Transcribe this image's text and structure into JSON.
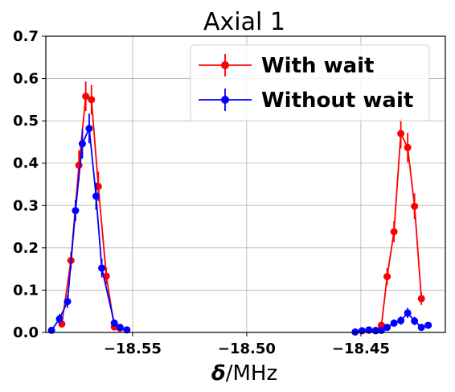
{
  "chart_data": {
    "type": "line",
    "title": "Axial 1",
    "xlabel_symbol": "δ",
    "xlabel_unit": "/MHz",
    "xlim": [
      -18.588,
      -18.413
    ],
    "ylim": [
      0,
      0.7
    ],
    "x_ticks": [
      -18.55,
      -18.5,
      -18.45
    ],
    "x_tick_labels": [
      "−18.55",
      "−18.50",
      "−18.45"
    ],
    "y_ticks": [
      0,
      0.1,
      0.2,
      0.3,
      0.4,
      0.5,
      0.6,
      0.7
    ],
    "y_tick_labels": [
      "0.0",
      "0.1",
      "0.2",
      "0.3",
      "0.4",
      "0.5",
      "0.6",
      "0.7"
    ],
    "grid": true,
    "legend_position": "top-right",
    "series": [
      {
        "name": "With wait",
        "color": "#ff0000",
        "segments": [
          {
            "x": [
              -18.581,
              -18.577,
              -18.5735,
              -18.5705,
              -18.568,
              -18.565,
              -18.5615,
              -18.558,
              -18.5555
            ],
            "y": [
              0.02,
              0.17,
              0.395,
              0.558,
              0.55,
              0.345,
              0.133,
              0.013,
              0.01
            ],
            "err": [
              0.008,
              0.02,
              0.035,
              0.035,
              0.035,
              0.035,
              0.02,
              0.006,
              0.005
            ]
          },
          {
            "x": [
              -18.4465,
              -18.4435,
              -18.441,
              -18.4385,
              -18.4355,
              -18.4325,
              -18.4295,
              -18.4265,
              -18.4235
            ],
            "y": [
              0.005,
              0.005,
              0.017,
              0.132,
              0.238,
              0.47,
              0.437,
              0.298,
              0.08
            ],
            "err": [
              0.004,
              0.004,
              0.006,
              0.02,
              0.025,
              0.035,
              0.035,
              0.03,
              0.015
            ]
          }
        ]
      },
      {
        "name": "Without wait",
        "color": "#0000ff",
        "segments": [
          {
            "x": [
              -18.5855,
              -18.582,
              -18.5785,
              -18.575,
              -18.572,
              -18.569,
              -18.566,
              -18.5635,
              -18.558,
              -18.5555,
              -18.5525
            ],
            "y": [
              0.005,
              0.032,
              0.073,
              0.288,
              0.446,
              0.482,
              0.322,
              0.152,
              0.022,
              0.012,
              0.006
            ],
            "err": [
              0.004,
              0.012,
              0.015,
              0.025,
              0.035,
              0.035,
              0.032,
              0.022,
              0.008,
              0.005,
              0.004
            ]
          },
          {
            "x": [
              -18.4525,
              -18.4495,
              -18.4465,
              -18.4435,
              -18.441,
              -18.4385,
              -18.4355,
              -18.4325,
              -18.4295,
              -18.4265,
              -18.4235,
              -18.4205
            ],
            "y": [
              0.001,
              0.004,
              0.006,
              0.004,
              0.005,
              0.012,
              0.022,
              0.028,
              0.046,
              0.027,
              0.012,
              0.017
            ],
            "err": [
              0.002,
              0.003,
              0.004,
              0.003,
              0.004,
              0.006,
              0.008,
              0.01,
              0.012,
              0.01,
              0.006,
              0.006
            ]
          }
        ]
      }
    ]
  }
}
